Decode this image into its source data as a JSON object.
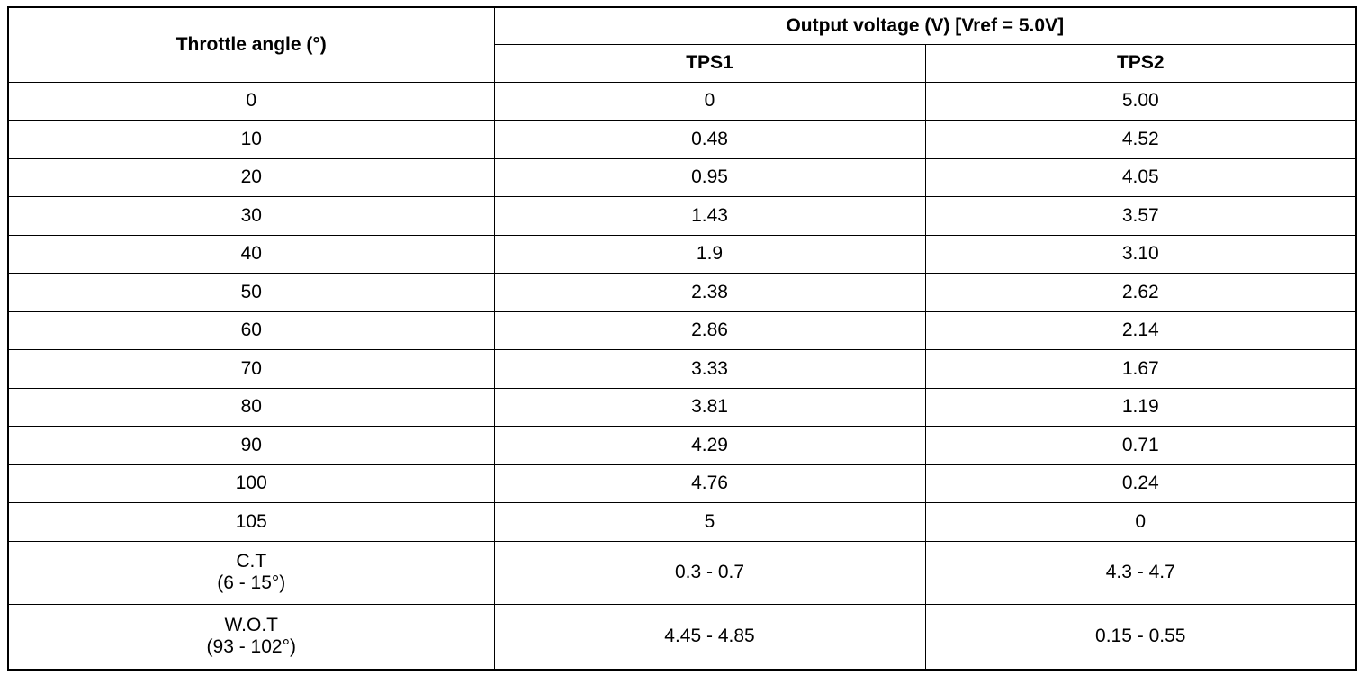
{
  "table": {
    "header": {
      "angle": "Throttle angle (°)",
      "output": "Output voltage (V) [Vref = 5.0V]",
      "tps1": "TPS1",
      "tps2": "TPS2"
    },
    "rows": [
      [
        [
          "0"
        ],
        "0",
        "5.00"
      ],
      [
        [
          "10"
        ],
        "0.48",
        "4.52"
      ],
      [
        [
          "20"
        ],
        "0.95",
        "4.05"
      ],
      [
        [
          "30"
        ],
        "1.43",
        "3.57"
      ],
      [
        [
          "40"
        ],
        "1.9",
        "3.10"
      ],
      [
        [
          "50"
        ],
        "2.38",
        "2.62"
      ],
      [
        [
          "60"
        ],
        "2.86",
        "2.14"
      ],
      [
        [
          "70"
        ],
        "3.33",
        "1.67"
      ],
      [
        [
          "80"
        ],
        "3.81",
        "1.19"
      ],
      [
        [
          "90"
        ],
        "4.29",
        "0.71"
      ],
      [
        [
          "100"
        ],
        "4.76",
        "0.24"
      ],
      [
        [
          "105"
        ],
        "5",
        "0"
      ],
      [
        [
          "C.T",
          "(6 - 15°)"
        ],
        "0.3 - 0.7",
        "4.3 - 4.7"
      ],
      [
        [
          "W.O.T",
          "(93 - 102°)"
        ],
        "4.45 - 4.85",
        "0.15 - 0.55"
      ]
    ]
  }
}
